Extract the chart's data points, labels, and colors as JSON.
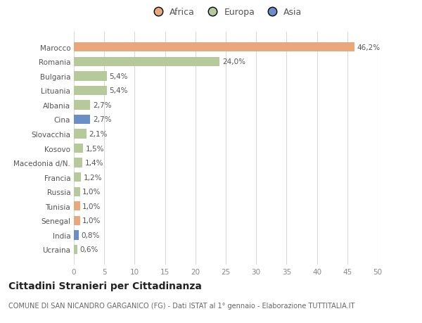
{
  "countries": [
    "Ucraina",
    "India",
    "Senegal",
    "Tunisia",
    "Russia",
    "Francia",
    "Macedonia d/N.",
    "Kosovo",
    "Slovacchia",
    "Cina",
    "Albania",
    "Lituania",
    "Bulgaria",
    "Romania",
    "Marocco"
  ],
  "values": [
    0.6,
    0.8,
    1.0,
    1.0,
    1.0,
    1.2,
    1.4,
    1.5,
    2.1,
    2.7,
    2.7,
    5.4,
    5.4,
    24.0,
    46.2
  ],
  "labels": [
    "0,6%",
    "0,8%",
    "1,0%",
    "1,0%",
    "1,0%",
    "1,2%",
    "1,4%",
    "1,5%",
    "2,1%",
    "2,7%",
    "2,7%",
    "5,4%",
    "5,4%",
    "24,0%",
    "46,2%"
  ],
  "colors": [
    "#b5c99a",
    "#6a8fc7",
    "#e8a87c",
    "#e8a87c",
    "#b5c99a",
    "#b5c99a",
    "#b5c99a",
    "#b5c99a",
    "#b5c99a",
    "#6a8fc7",
    "#b5c99a",
    "#b5c99a",
    "#b5c99a",
    "#b5c99a",
    "#e8a87c"
  ],
  "legend": [
    {
      "label": "Africa",
      "color": "#e8a87c"
    },
    {
      "label": "Europa",
      "color": "#b5c99a"
    },
    {
      "label": "Asia",
      "color": "#6a8fc7"
    }
  ],
  "xlim": [
    0,
    50
  ],
  "xticks": [
    0,
    5,
    10,
    15,
    20,
    25,
    30,
    35,
    40,
    45,
    50
  ],
  "title": "Cittadini Stranieri per Cittadinanza",
  "subtitle": "COMUNE DI SAN NICANDRO GARGANICO (FG) - Dati ISTAT al 1° gennaio - Elaborazione TUTTITALIA.IT",
  "bg_color": "#ffffff",
  "grid_color": "#d8d8d8",
  "bar_height": 0.65,
  "label_fontsize": 7.5,
  "tick_fontsize": 7.5,
  "title_fontsize": 10,
  "subtitle_fontsize": 7.0
}
